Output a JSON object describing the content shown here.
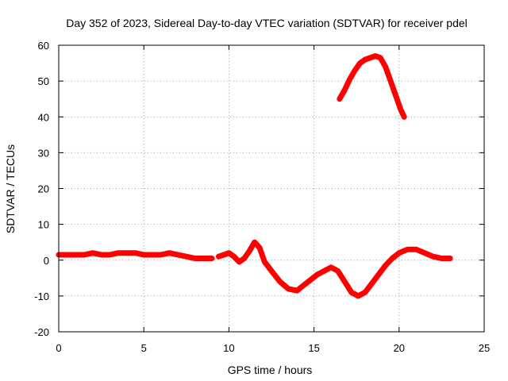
{
  "chart_data": {
    "type": "line",
    "title": "Day 352 of 2023, Sidereal Day-to-day VTEC variation (SDTVAR) for receiver pdel",
    "xlabel": "GPS time / hours",
    "ylabel": "SDTVAR / TECUs",
    "xlim": [
      0,
      25
    ],
    "ylim": [
      -20,
      60
    ],
    "xticks": [
      "0",
      "5",
      "10",
      "15",
      "20",
      "25"
    ],
    "yticks": [
      "-20",
      "-10",
      "0",
      "10",
      "20",
      "30",
      "40",
      "50",
      "60"
    ],
    "grid": true,
    "series": [
      {
        "name": "SDTVAR segment 1",
        "color": "#ff0000",
        "x": [
          0.0,
          0.5,
          1.0,
          1.5,
          2.0,
          2.5,
          3.0,
          3.5,
          4.0,
          4.5,
          5.0,
          5.5,
          6.0,
          6.5,
          7.0,
          7.5,
          8.0,
          8.5,
          9.0
        ],
        "y": [
          1.5,
          1.5,
          1.5,
          1.5,
          2.0,
          1.5,
          1.5,
          2.0,
          2.0,
          2.0,
          1.5,
          1.5,
          1.5,
          2.0,
          1.5,
          1.0,
          0.5,
          0.5,
          0.5
        ]
      },
      {
        "name": "SDTVAR segment 2",
        "color": "#ff0000",
        "x": [
          9.4,
          9.7,
          10.0,
          10.3,
          10.6,
          10.9,
          11.2,
          11.5,
          11.8,
          12.1,
          12.5,
          13.0,
          13.5,
          14.0,
          14.4,
          14.8,
          15.2,
          15.6,
          16.0,
          16.4,
          16.8,
          17.2,
          17.6,
          18.0,
          18.4,
          18.8,
          19.2,
          19.6,
          20.0,
          20.5,
          21.0,
          21.5,
          22.0,
          22.5,
          23.0
        ],
        "y": [
          1.0,
          1.5,
          2.0,
          1.0,
          -0.5,
          0.5,
          2.5,
          5.0,
          3.5,
          -0.5,
          -3.0,
          -6.0,
          -8.0,
          -8.5,
          -7.0,
          -5.5,
          -4.0,
          -3.0,
          -2.0,
          -3.0,
          -6.0,
          -9.0,
          -10.0,
          -9.0,
          -6.5,
          -4.0,
          -1.5,
          0.5,
          2.0,
          3.0,
          3.0,
          2.0,
          1.0,
          0.5,
          0.5
        ]
      },
      {
        "name": "SDTVAR segment 3",
        "color": "#ff0000",
        "x": [
          16.5,
          16.8,
          17.1,
          17.4,
          17.7,
          18.0,
          18.3,
          18.6,
          18.9,
          19.2,
          19.5,
          19.8,
          20.1,
          20.3
        ],
        "y": [
          45.0,
          47.5,
          50.5,
          53.0,
          55.0,
          56.0,
          56.5,
          57.0,
          56.5,
          54.0,
          50.0,
          46.0,
          42.0,
          40.0
        ]
      }
    ]
  }
}
